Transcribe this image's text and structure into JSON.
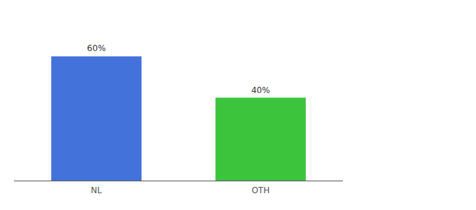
{
  "chart_data": {
    "type": "bar",
    "categories": [
      "NL",
      "OTH"
    ],
    "values": [
      60,
      40
    ],
    "value_labels": [
      "60%",
      "40%"
    ],
    "colors": [
      "#4472db",
      "#3dc43d"
    ],
    "ylim": [
      0,
      75
    ],
    "data_labels": true,
    "tick_labels": "x",
    "grid": false
  }
}
